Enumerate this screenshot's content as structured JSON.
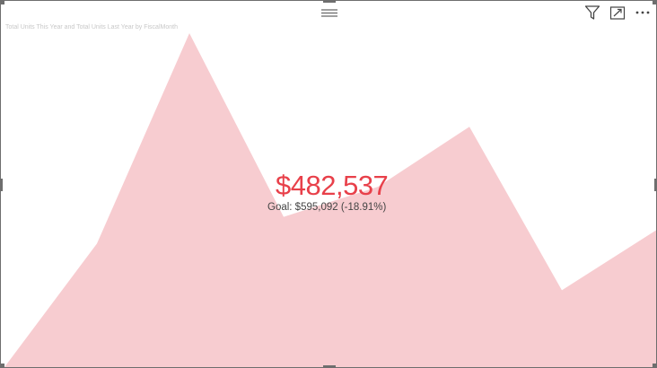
{
  "visual": {
    "title": "Total Units This Year and Total Units Last Year by FiscalMonth",
    "kpi_value": "$482,537",
    "kpi_goal_text": "Goal: $595,092 (-18.91%)",
    "kpi_status_color": "#e8404a",
    "background_area_color": "#f7ccd0"
  },
  "toolbar": {
    "icons": [
      "filter-icon",
      "focus-mode-icon",
      "more-options-icon"
    ]
  },
  "chart_data": {
    "type": "area",
    "x": [
      0,
      1,
      2,
      3,
      4,
      5,
      6,
      7
    ],
    "values": [
      0,
      37,
      100,
      45,
      54,
      72,
      23,
      41
    ],
    "ylim": [
      0,
      100
    ],
    "grid": false,
    "legend": "none"
  }
}
